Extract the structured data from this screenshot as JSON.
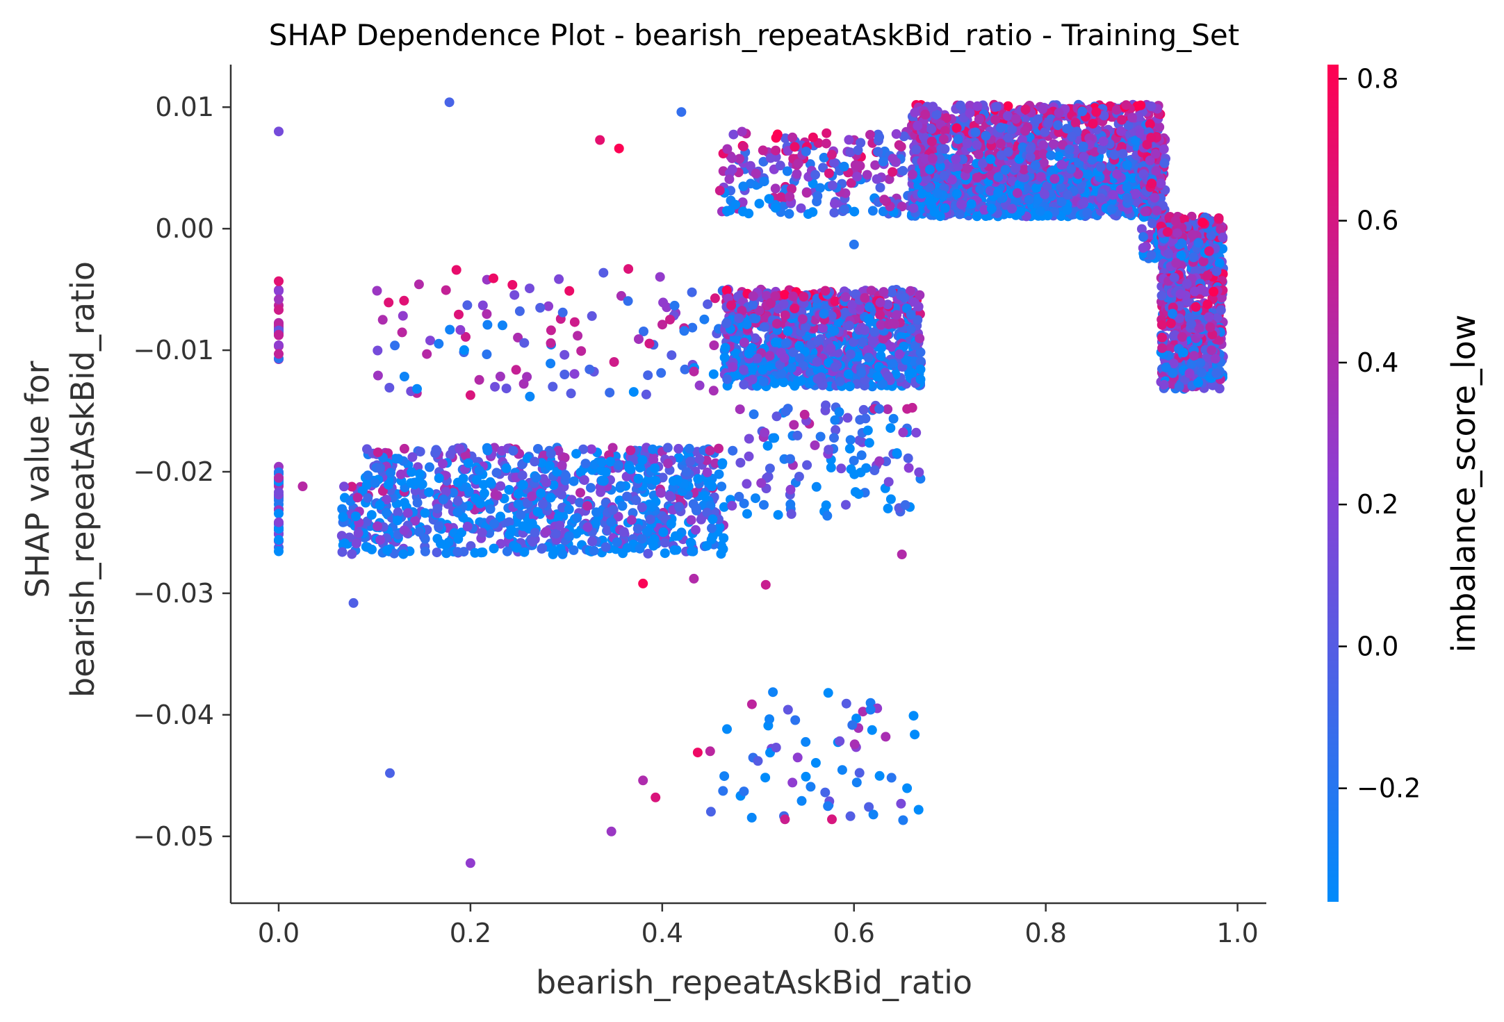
{
  "chart_data": {
    "type": "scatter",
    "title": "SHAP Dependence Plot - bearish_repeatAskBid_ratio - Training_Set",
    "xlabel": "bearish_repeatAskBid_ratio",
    "ylabel_lines": [
      "SHAP value for",
      "bearish_repeatAskBid_ratio"
    ],
    "xlim": [
      -0.05,
      1.03
    ],
    "ylim": [
      -0.0555,
      0.0135
    ],
    "x_ticks": [
      0.0,
      0.2,
      0.4,
      0.6,
      0.8,
      1.0
    ],
    "x_tick_labels": [
      "0.0",
      "0.2",
      "0.4",
      "0.6",
      "0.8",
      "1.0"
    ],
    "y_ticks": [
      0.01,
      0.0,
      -0.01,
      -0.02,
      -0.03,
      -0.04,
      -0.05
    ],
    "y_tick_labels": [
      "0.01",
      "0.00",
      "−0.01",
      "−0.02",
      "−0.03",
      "−0.04",
      "−0.05"
    ],
    "grid": false,
    "colorbar": {
      "label": "imbalance_score_low",
      "range": [
        -0.36,
        0.82
      ],
      "ticks": [
        0.8,
        0.6,
        0.4,
        0.2,
        0.0,
        -0.2
      ],
      "tick_labels": [
        "0.8",
        "0.6",
        "0.4",
        "0.2",
        "0.0",
        "−0.2"
      ],
      "color_low": "#008bfb",
      "color_mid": "#8b3fd4",
      "color_high": "#ff0051"
    },
    "clusters": [
      {
        "x": [
          0.0,
          0.0
        ],
        "y": [
          -0.0268,
          -0.0195
        ],
        "n": 40
      },
      {
        "x": [
          0.0,
          0.0
        ],
        "y": [
          -0.0112,
          -0.0042
        ],
        "n": 22
      },
      {
        "x": [
          0.065,
          0.465
        ],
        "y": [
          -0.0268,
          -0.0212
        ],
        "n": 620
      },
      {
        "x": [
          0.09,
          0.465
        ],
        "y": [
          -0.0212,
          -0.018
        ],
        "n": 320
      },
      {
        "x": [
          0.1,
          0.47
        ],
        "y": [
          -0.014,
          -0.0032
        ],
        "n": 110
      },
      {
        "x": [
          0.465,
          0.67
        ],
        "y": [
          -0.013,
          -0.0085
        ],
        "n": 650
      },
      {
        "x": [
          0.465,
          0.67
        ],
        "y": [
          -0.0085,
          -0.005
        ],
        "n": 420
      },
      {
        "x": [
          0.47,
          0.67
        ],
        "y": [
          -0.024,
          -0.0145
        ],
        "n": 120
      },
      {
        "x": [
          0.46,
          0.66
        ],
        "y": [
          0.0012,
          0.008
        ],
        "n": 220
      },
      {
        "x": [
          0.66,
          0.92
        ],
        "y": [
          0.001,
          0.005
        ],
        "n": 1200
      },
      {
        "x": [
          0.66,
          0.92
        ],
        "y": [
          0.004,
          0.0102
        ],
        "n": 900
      },
      {
        "x": [
          0.9,
          0.925
        ],
        "y": [
          -0.0025,
          0.0075
        ],
        "n": 130
      },
      {
        "x": [
          0.92,
          0.985
        ],
        "y": [
          -0.0035,
          0.001
        ],
        "n": 280
      },
      {
        "x": [
          0.92,
          0.985
        ],
        "y": [
          -0.0132,
          -0.0035
        ],
        "n": 520
      },
      {
        "x": [
          0.45,
          0.67
        ],
        "y": [
          -0.049,
          -0.038
        ],
        "n": 60
      }
    ],
    "outliers": [
      {
        "x": 0.0,
        "y": 0.008
      },
      {
        "x": 0.178,
        "y": 0.0104
      },
      {
        "x": 0.42,
        "y": 0.0096
      },
      {
        "x": 0.335,
        "y": 0.0073
      },
      {
        "x": 0.355,
        "y": 0.0066
      },
      {
        "x": 0.025,
        "y": -0.0212
      },
      {
        "x": 0.078,
        "y": -0.0308
      },
      {
        "x": 0.116,
        "y": -0.0448
      },
      {
        "x": 0.2,
        "y": -0.0522
      },
      {
        "x": 0.347,
        "y": -0.0496
      },
      {
        "x": 0.38,
        "y": -0.0454
      },
      {
        "x": 0.393,
        "y": -0.0468
      },
      {
        "x": 0.38,
        "y": -0.0292
      },
      {
        "x": 0.433,
        "y": -0.0288
      },
      {
        "x": 0.508,
        "y": -0.0293
      },
      {
        "x": 0.437,
        "y": -0.0431
      },
      {
        "x": 0.45,
        "y": -0.043
      },
      {
        "x": 0.528,
        "y": -0.0486
      },
      {
        "x": 0.577,
        "y": -0.0486
      },
      {
        "x": 0.65,
        "y": -0.0268
      },
      {
        "x": 0.2,
        "y": -0.0137
      },
      {
        "x": 0.6,
        "y": -0.0013
      }
    ]
  }
}
